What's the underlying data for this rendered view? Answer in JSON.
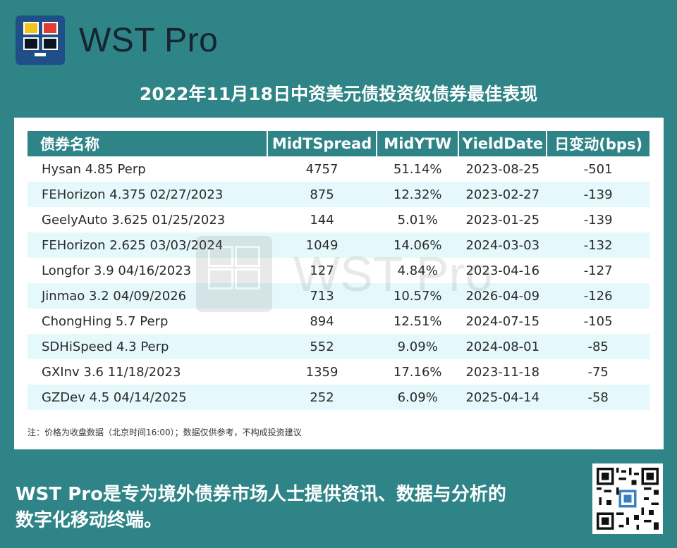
{
  "brand": {
    "name": "WST Pro"
  },
  "page_title": "2022年11月18日中资美元债投资级债券最佳表现",
  "table": {
    "headers": [
      "债券名称",
      "MidTSpread",
      "MidYTW",
      "YieldDate",
      "日变动(bps)"
    ],
    "rows": [
      [
        "Hysan 4.85 Perp",
        "4757",
        "51.14%",
        "2023-08-25",
        "-501"
      ],
      [
        "FEHorizon 4.375 02/27/2023",
        "875",
        "12.32%",
        "2023-02-27",
        "-139"
      ],
      [
        "GeelyAuto 3.625 01/25/2023",
        "144",
        "5.01%",
        "2023-01-25",
        "-139"
      ],
      [
        "FEHorizon 2.625 03/03/2024",
        "1049",
        "14.06%",
        "2024-03-03",
        "-132"
      ],
      [
        "Longfor 3.9 04/16/2023",
        "127",
        "4.84%",
        "2023-04-16",
        "-127"
      ],
      [
        "Jinmao 3.2 04/09/2026",
        "713",
        "10.57%",
        "2026-04-09",
        "-126"
      ],
      [
        "ChongHing 5.7 Perp",
        "894",
        "12.51%",
        "2024-07-15",
        "-105"
      ],
      [
        "SDHiSpeed 4.3 Perp",
        "552",
        "9.09%",
        "2024-08-01",
        "-85"
      ],
      [
        "GXInv 3.6 11/18/2023",
        "1359",
        "17.16%",
        "2023-11-18",
        "-75"
      ],
      [
        "GZDev 4.5 04/14/2025",
        "252",
        "6.09%",
        "2025-04-14",
        "-58"
      ]
    ]
  },
  "note": "注：价格为收盘数据（北京时间16:00）；数据仅供参考，不构成投资建议",
  "footer": {
    "line1": "WST Pro是专为境外债券市场人士提供资讯、数据与分析的",
    "line2": "数字化移动终端。"
  },
  "watermark": {
    "text": "WST Pro"
  },
  "colors": {
    "teal": "#2e8487",
    "row_alt": "#e5f8fb",
    "logo_blue": "#1f4f86",
    "logo_yellow": "#f2c41e",
    "logo_red": "#e23b32"
  },
  "icons": {
    "logo": "wst-pro-logo-icon",
    "qr": "qr-code-icon"
  }
}
